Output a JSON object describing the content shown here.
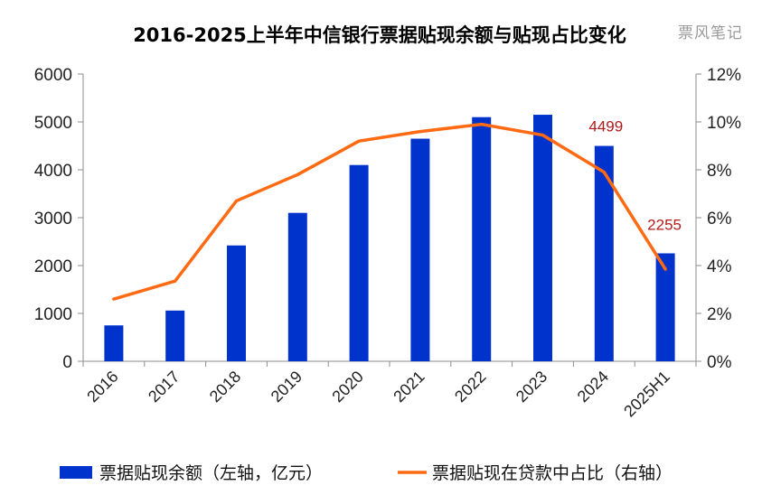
{
  "chart_data": {
    "type": "bar+line",
    "title": "2016-2025上半年中信银行票据贴现余额与贴现占比变化",
    "watermark": "票风笔记",
    "categories": [
      "2016",
      "2017",
      "2018",
      "2019",
      "2020",
      "2021",
      "2022",
      "2023",
      "2024",
      "2025H1"
    ],
    "series": [
      {
        "name": "票据贴现余额（左轴，亿元）",
        "type": "bar",
        "axis": "left",
        "color": "#0033cc",
        "values": [
          750,
          1060,
          2420,
          3100,
          4100,
          4650,
          5100,
          5150,
          4499,
          2255
        ]
      },
      {
        "name": "票据贴现在贷款中占比（右轴）",
        "type": "line",
        "axis": "right",
        "color": "#ff6a13",
        "values": [
          2.6,
          3.35,
          6.7,
          7.8,
          9.2,
          9.6,
          9.9,
          9.45,
          7.9,
          3.85
        ]
      }
    ],
    "data_labels": [
      {
        "category": "2024",
        "text": "4499"
      },
      {
        "category": "2025H1",
        "text": "2255"
      }
    ],
    "y_left": {
      "min": 0,
      "max": 6000,
      "ticks": [
        "0",
        "1000",
        "2000",
        "3000",
        "4000",
        "5000",
        "6000"
      ]
    },
    "y_right": {
      "min": 0,
      "max": 12,
      "ticks": [
        "0%",
        "2%",
        "4%",
        "6%",
        "8%",
        "10%",
        "12%"
      ]
    },
    "grid": false,
    "legend_position": "bottom"
  }
}
